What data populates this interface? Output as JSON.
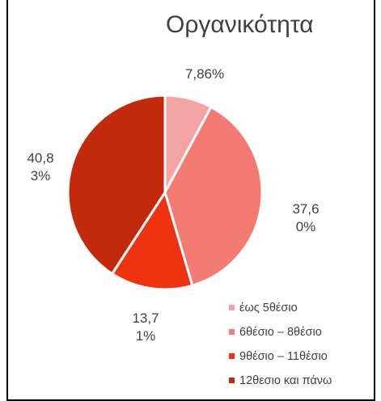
{
  "chart_data": {
    "type": "pie",
    "title": "Οργανικότητα",
    "categories": [
      "έως 5θέσιο",
      "6θέσιο – 8θέσιο",
      "9θέσιο – 11θέσιο",
      "12θεσιο και πάνω"
    ],
    "values": [
      7.86,
      37.6,
      13.71,
      40.83
    ],
    "value_labels": [
      "7,86%",
      "37,60%",
      "13,71%",
      "40,83%"
    ],
    "colors": [
      "#f4a3a3",
      "#f47b72",
      "#ef3210",
      "#c3290b"
    ],
    "legend": "bottom-right"
  }
}
